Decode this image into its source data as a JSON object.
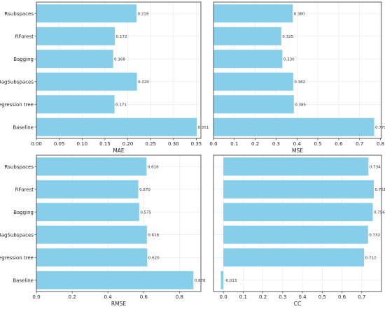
{
  "colors": {
    "bar": "#87ceeb",
    "grid": "#e6e6e6",
    "axis": "#333333",
    "background": "#ffffff"
  },
  "chart_data": [
    {
      "type": "bar",
      "orientation": "horizontal",
      "categories": [
        "Rsubspaces",
        "RForest",
        "Bagging",
        "BagSubspaces",
        "Regression tree",
        "Baseline"
      ],
      "values": [
        0.219,
        0.172,
        0.168,
        0.22,
        0.171,
        0.351
      ],
      "value_labels": [
        "0.219",
        "0.172",
        "0.168",
        "0.220",
        "0.171",
        "0.351"
      ],
      "xlabel": "MAE",
      "xlim": [
        0,
        0.36
      ],
      "xticks": [
        0.0,
        0.05,
        0.1,
        0.15,
        0.2,
        0.25,
        0.3,
        0.35
      ],
      "xtick_labels": [
        "0.00",
        "0.05",
        "0.10",
        "0.15",
        "0.20",
        "0.25",
        "0.30",
        "0.35"
      ],
      "show_category_labels": true,
      "grid": true
    },
    {
      "type": "bar",
      "orientation": "horizontal",
      "categories": [
        "Rsubspaces",
        "RForest",
        "Bagging",
        "BagSubspaces",
        "Regression tree",
        "Baseline"
      ],
      "values": [
        0.38,
        0.325,
        0.33,
        0.382,
        0.385,
        0.77
      ],
      "value_labels": [
        "0.380",
        "0.325",
        "0.330",
        "0.382",
        "0.385",
        "0.770"
      ],
      "xlabel": "MSE",
      "xlim": [
        0,
        0.805
      ],
      "xticks": [
        0.0,
        0.1,
        0.2,
        0.3,
        0.4,
        0.5,
        0.6,
        0.7,
        0.8
      ],
      "xtick_labels": [
        "0.0",
        "0.1",
        "0.2",
        "0.3",
        "0.4",
        "0.5",
        "0.6",
        "0.7",
        "0.8"
      ],
      "show_category_labels": false,
      "grid": true
    },
    {
      "type": "bar",
      "orientation": "horizontal",
      "categories": [
        "Rsubspaces",
        "RForest",
        "Bagging",
        "BagSubspaces",
        "Regression tree",
        "Baseline"
      ],
      "values": [
        0.616,
        0.57,
        0.575,
        0.618,
        0.62,
        0.878
      ],
      "value_labels": [
        "0.616",
        "0.570",
        "0.575",
        "0.618",
        "0.620",
        "0.878"
      ],
      "xlabel": "RMSE",
      "xlim": [
        0,
        0.92
      ],
      "xticks": [
        0.0,
        0.2,
        0.4,
        0.6,
        0.8
      ],
      "xtick_labels": [
        "0.0",
        "0.2",
        "0.4",
        "0.6",
        "0.8"
      ],
      "show_category_labels": true,
      "grid": true
    },
    {
      "type": "bar",
      "orientation": "horizontal",
      "categories": [
        "Rsubspaces",
        "RForest",
        "Bagging",
        "BagSubspaces",
        "Regression tree",
        "Baseline"
      ],
      "values": [
        0.734,
        0.761,
        0.756,
        0.732,
        0.712,
        -0.013
      ],
      "value_labels": [
        "0.734",
        "0.761",
        "0.756",
        "0.732",
        "0.712",
        "-0.013"
      ],
      "xlabel": "CC",
      "xlim": [
        -0.05,
        0.8
      ],
      "xticks": [
        0.0,
        0.1,
        0.2,
        0.3,
        0.4,
        0.5,
        0.6,
        0.7
      ],
      "xtick_labels": [
        "0.0",
        "0.1",
        "0.2",
        "0.3",
        "0.4",
        "0.5",
        "0.6",
        "0.7"
      ],
      "show_category_labels": false,
      "grid": true
    }
  ]
}
